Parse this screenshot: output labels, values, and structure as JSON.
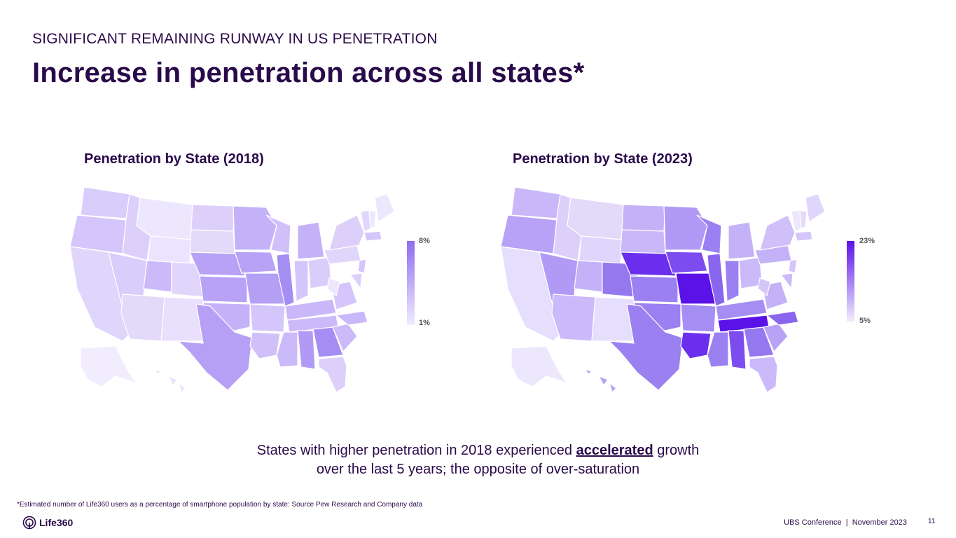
{
  "header": {
    "eyebrow": "SIGNIFICANT REMAINING RUNWAY IN US PENETRATION",
    "title": "Increase in penetration across all states*"
  },
  "map_2018": {
    "title": "Penetration by State (2018)",
    "legend_max": "8%",
    "legend_min": "1%",
    "color_max": "#8f6bf0",
    "color_min": "#f1ecfe"
  },
  "map_2023": {
    "title": "Penetration by State (2023)",
    "legend_max": "23%",
    "legend_min": "5%",
    "color_max": "#5a12e8",
    "color_min": "#f1ecfe"
  },
  "caption": {
    "line1_pre": "States with higher penetration in 2018 experienced ",
    "line1_highlight": "accelerated",
    "line1_post": " growth",
    "line2": "over the last 5 years; the opposite of over-saturation"
  },
  "footnote": "*Estimated number of Life360 users as a percentage of smartphone population by state: Source Pew Research and Company data",
  "footer": {
    "brand": "Life360",
    "event": "UBS Conference  |  November 2023",
    "page": "11"
  },
  "colors": {
    "text": "#2a0a4a",
    "border": "#ffffff"
  }
}
